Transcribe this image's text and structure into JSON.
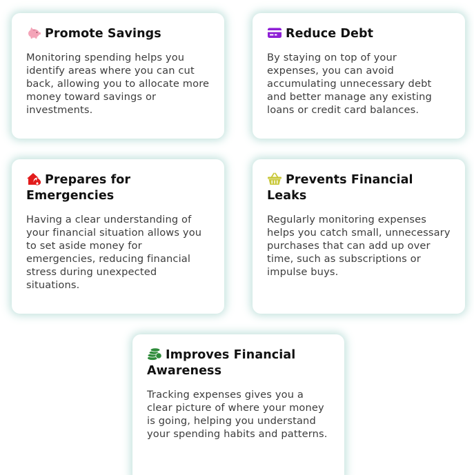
{
  "cards": [
    {
      "icon": "piggy-bank-icon",
      "icon_color": "#f4a4b8",
      "title": "Promote Savings",
      "text": "Monitoring spending helps you identify areas where you can cut back, allowing you to allocate more money toward savings or investments."
    },
    {
      "icon": "credit-card-icon",
      "icon_color": "#8e1fd6",
      "title": "Reduce Debt",
      "text": "By staying on top of your expenses, you can avoid accumulating unnecessary debt and better manage any existing loans or credit card balances."
    },
    {
      "icon": "house-fire-icon",
      "icon_color": "#e21b1b",
      "title": "Prepares for Emergencies",
      "text": "Having a clear understanding of your financial situation allows you to set aside money for emergencies, reducing financial stress during unexpected situations."
    },
    {
      "icon": "basket-icon",
      "icon_color": "#c9c83a",
      "title": "Prevents Financial Leaks",
      "text": "Regularly monitoring expenses helps you catch small, unnecessary purchases that can add up over time, such as subscriptions or impulse buys."
    },
    {
      "icon": "coin-stack-icon",
      "icon_color": "#2e8b3a",
      "title": "Improves Financial Awareness",
      "text": "Tracking expenses gives you a clear picture of where your money is going, helping you understand your spending habits and patterns."
    }
  ]
}
